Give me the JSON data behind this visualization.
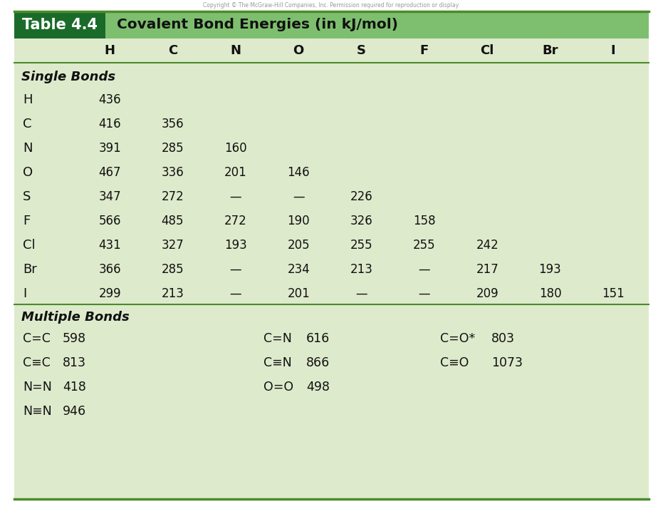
{
  "title_label": "Table 4.4",
  "title_desc": "Covalent Bond Energies (in kJ/mol)",
  "header_dark_green": "#1a6b2a",
  "header_light_green": "#7dbf6e",
  "body_bg": "#deeacc",
  "border_color": "#4a8c2a",
  "text_dark": "#1a1a1a",
  "col_headers": [
    "H",
    "C",
    "N",
    "O",
    "S",
    "F",
    "Cl",
    "Br",
    "I"
  ],
  "single_bonds_label": "Single Bonds",
  "single_bonds": [
    {
      "row": "H",
      "vals": [
        "436",
        "",
        "",
        "",
        "",
        "",
        "",
        "",
        ""
      ]
    },
    {
      "row": "C",
      "vals": [
        "416",
        "356",
        "",
        "",
        "",
        "",
        "",
        "",
        ""
      ]
    },
    {
      "row": "N",
      "vals": [
        "391",
        "285",
        "160",
        "",
        "",
        "",
        "",
        "",
        ""
      ]
    },
    {
      "row": "O",
      "vals": [
        "467",
        "336",
        "201",
        "146",
        "",
        "",
        "",
        "",
        ""
      ]
    },
    {
      "row": "S",
      "vals": [
        "347",
        "272",
        "—",
        "—",
        "226",
        "",
        "",
        "",
        ""
      ]
    },
    {
      "row": "F",
      "vals": [
        "566",
        "485",
        "272",
        "190",
        "326",
        "158",
        "",
        "",
        ""
      ]
    },
    {
      "row": "Cl",
      "vals": [
        "431",
        "327",
        "193",
        "205",
        "255",
        "255",
        "242",
        "",
        ""
      ]
    },
    {
      "row": "Br",
      "vals": [
        "366",
        "285",
        "—",
        "234",
        "213",
        "—",
        "217",
        "193",
        ""
      ]
    },
    {
      "row": "I",
      "vals": [
        "299",
        "213",
        "—",
        "201",
        "—",
        "—",
        "209",
        "180",
        "151"
      ]
    }
  ],
  "multiple_bonds_label": "Multiple Bonds",
  "multiple_bonds_col1": [
    {
      "bond": "C=C",
      "val": "598"
    },
    {
      "bond": "C≡C",
      "val": "813"
    },
    {
      "bond": "N=N",
      "val": "418"
    },
    {
      "bond": "N≡N",
      "val": "946"
    }
  ],
  "multiple_bonds_col2": [
    {
      "bond": "C=N",
      "val": "616"
    },
    {
      "bond": "C≡N",
      "val": "866"
    },
    {
      "bond": "O=O",
      "val": "498"
    },
    {
      "bond": "",
      "val": ""
    }
  ],
  "multiple_bonds_col3": [
    {
      "bond": "C=O*",
      "val": "803"
    },
    {
      "bond": "C≡O",
      "val": "1073"
    },
    {
      "bond": "",
      "val": ""
    },
    {
      "bond": "",
      "val": ""
    }
  ],
  "copyright_text": "Copyright © The McGraw-Hill Companies, Inc. Permission required for reproduction or display."
}
